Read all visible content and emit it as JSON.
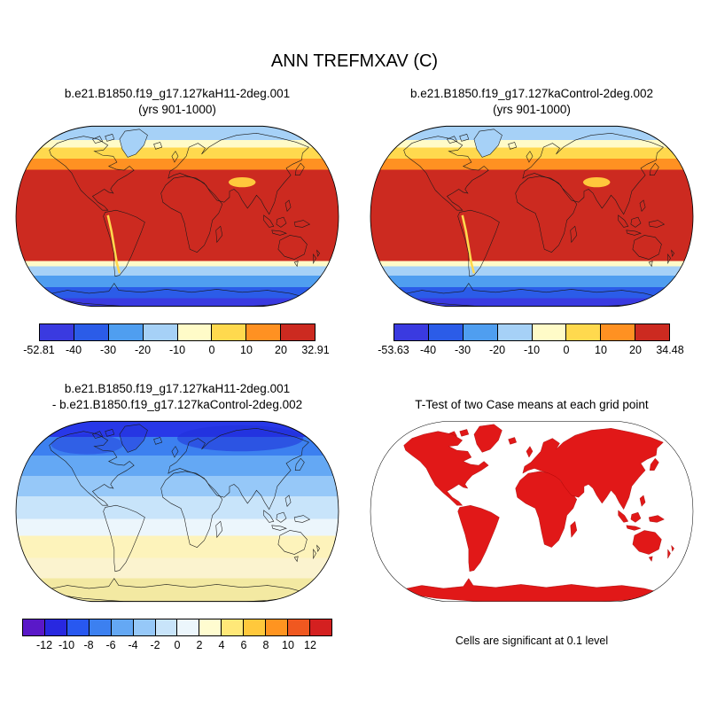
{
  "title": "ANN TREFMXAV (C)",
  "panels": {
    "top_left": {
      "title_line1": "b.e21.B1850.f19_g17.127kaH11-2deg.001",
      "title_line2": "(yrs 901-1000)",
      "colorbar": {
        "labels": [
          "-52.81",
          "-40",
          "-30",
          "-20",
          "-10",
          "0",
          "10",
          "20",
          "32.91"
        ],
        "colors": [
          "#3a3ae0",
          "#2b5ce8",
          "#4f9ef0",
          "#a6d1f7",
          "#fffbc8",
          "#ffd94e",
          "#ff9122",
          "#cc2a20"
        ],
        "label_start": 0
      }
    },
    "top_right": {
      "title_line1": "b.e21.B1850.f19_g17.127kaControl-2deg.002",
      "title_line2": "(yrs 901-1000)",
      "colorbar": {
        "labels": [
          "-53.63",
          "-40",
          "-30",
          "-20",
          "-10",
          "0",
          "10",
          "20",
          "34.48"
        ],
        "colors": [
          "#3a3ae0",
          "#2b5ce8",
          "#4f9ef0",
          "#a6d1f7",
          "#fffbc8",
          "#ffd94e",
          "#ff9122",
          "#cc2a20"
        ],
        "label_start": 0
      }
    },
    "bottom_left": {
      "title_line1": "b.e21.B1850.f19_g17.127kaH11-2deg.001",
      "title_line2": "- b.e21.B1850.f19_g17.127kaControl-2deg.002",
      "colorbar": {
        "labels": [
          "-12",
          "-10",
          "-8",
          "-6",
          "-4",
          "-2",
          "0",
          "2",
          "4",
          "6",
          "8",
          "10",
          "12"
        ],
        "colors": [
          "#5a18c8",
          "#2828e0",
          "#2858f0",
          "#3c80f0",
          "#64a8f4",
          "#96c8f8",
          "#c8e4fa",
          "#ecf6fc",
          "#fffcd0",
          "#ffe878",
          "#ffc83c",
          "#ff9420",
          "#f05820",
          "#d42020"
        ],
        "label_start": 1
      }
    },
    "bottom_right": {
      "title": "T-Test of two Case means at each grid point",
      "note": "Cells are significant at 0.1 level"
    }
  },
  "chart_data": [
    {
      "type": "heatmap",
      "panel": "top_left",
      "title": "b.e21.B1850.f19_g17.127kaH11-2deg.001",
      "subtitle": "(yrs 901-1000)",
      "variable": "ANN TREFMXAV (C)",
      "projection": "robinson",
      "contour_levels": [
        -40,
        -30,
        -20,
        -10,
        0,
        10,
        20
      ],
      "data_min": -52.81,
      "data_max": 32.91,
      "palette": [
        "#3a3ae0",
        "#2b5ce8",
        "#4f9ef0",
        "#a6d1f7",
        "#fffbc8",
        "#ffd94e",
        "#ff9122",
        "#cc2a20"
      ],
      "legend_position": "bottom"
    },
    {
      "type": "heatmap",
      "panel": "top_right",
      "title": "b.e21.B1850.f19_g17.127kaControl-2deg.002",
      "subtitle": "(yrs 901-1000)",
      "variable": "ANN TREFMXAV (C)",
      "projection": "robinson",
      "contour_levels": [
        -40,
        -30,
        -20,
        -10,
        0,
        10,
        20
      ],
      "data_min": -53.63,
      "data_max": 34.48,
      "palette": [
        "#3a3ae0",
        "#2b5ce8",
        "#4f9ef0",
        "#a6d1f7",
        "#fffbc8",
        "#ffd94e",
        "#ff9122",
        "#cc2a20"
      ],
      "legend_position": "bottom"
    },
    {
      "type": "heatmap",
      "panel": "bottom_left",
      "title": "b.e21.B1850.f19_g17.127kaH11-2deg.001 - b.e21.B1850.f19_g17.127kaControl-2deg.002",
      "projection": "robinson",
      "contour_levels": [
        -12,
        -10,
        -8,
        -6,
        -4,
        -2,
        0,
        2,
        4,
        6,
        8,
        10,
        12
      ],
      "palette": [
        "#5a18c8",
        "#2828e0",
        "#2858f0",
        "#3c80f0",
        "#64a8f4",
        "#96c8f8",
        "#c8e4fa",
        "#ecf6fc",
        "#fffcd0",
        "#ffe878",
        "#ffc83c",
        "#ff9420",
        "#f05820",
        "#d42020"
      ],
      "legend_position": "bottom"
    },
    {
      "type": "heatmap",
      "panel": "bottom_right",
      "title": "T-Test of two Case means at each grid point",
      "projection": "robinson",
      "annotation": "Cells are significant at 0.1 level",
      "significance_level": 0.1,
      "significant_color": "#e11818"
    }
  ]
}
